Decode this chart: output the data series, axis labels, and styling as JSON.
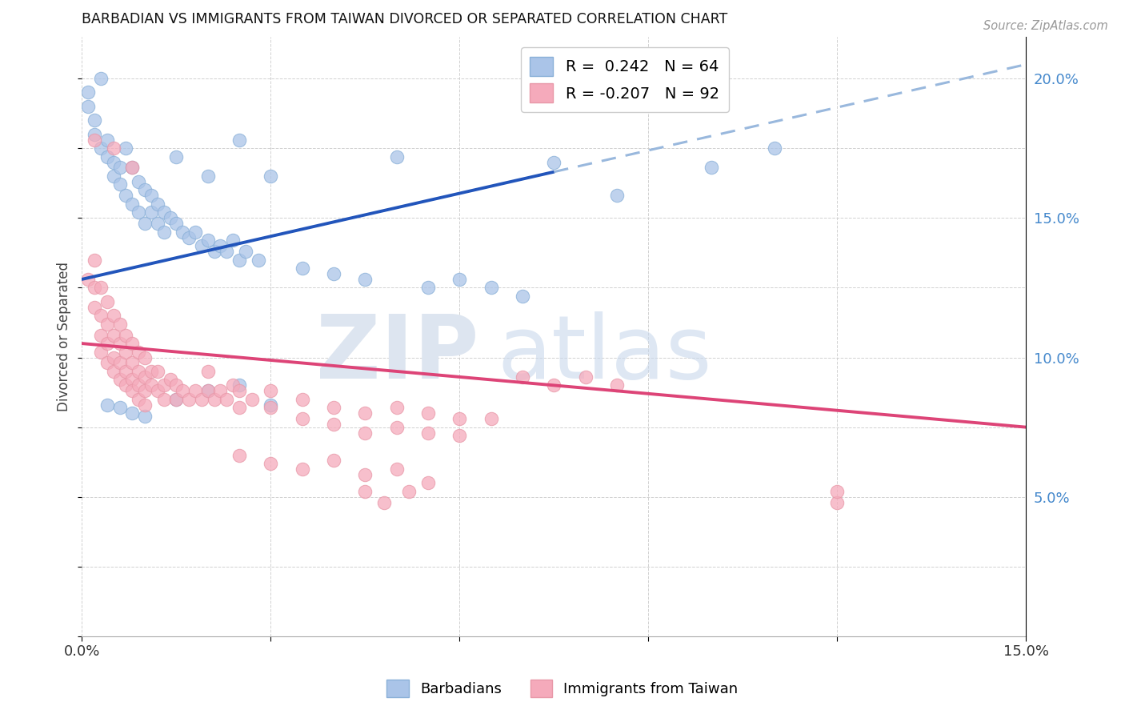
{
  "title": "BARBADIAN VS IMMIGRANTS FROM TAIWAN DIVORCED OR SEPARATED CORRELATION CHART",
  "source": "Source: ZipAtlas.com",
  "ylabel": "Divorced or Separated",
  "xlim": [
    0.0,
    0.15
  ],
  "ylim": [
    0.0,
    0.215
  ],
  "xtick_positions": [
    0.0,
    0.03,
    0.06,
    0.09,
    0.12,
    0.15
  ],
  "xtick_labels": [
    "0.0%",
    "",
    "",
    "",
    "",
    "15.0%"
  ],
  "ytick_positions": [
    0.0,
    0.05,
    0.1,
    0.15,
    0.2
  ],
  "ytick_labels": [
    "",
    "5.0%",
    "10.0%",
    "15.0%",
    "20.0%"
  ],
  "barbadian_color": "#aac4e8",
  "taiwan_color": "#f5aabb",
  "barbadian_line_color": "#2255bb",
  "taiwan_line_color": "#dd4477",
  "barbadian_line_dash_color": "#99b8dd",
  "barbadian_line_solid_end": 0.075,
  "barbadian_line_x0": 0.0,
  "barbadian_line_y0": 0.128,
  "barbadian_line_x1": 0.15,
  "barbadian_line_y1": 0.205,
  "taiwan_line_x0": 0.0,
  "taiwan_line_y0": 0.105,
  "taiwan_line_x1": 0.15,
  "taiwan_line_y1": 0.075,
  "barbadian_scatter": [
    [
      0.001,
      0.195
    ],
    [
      0.001,
      0.19
    ],
    [
      0.002,
      0.185
    ],
    [
      0.002,
      0.18
    ],
    [
      0.003,
      0.175
    ],
    [
      0.003,
      0.2
    ],
    [
      0.004,
      0.178
    ],
    [
      0.004,
      0.172
    ],
    [
      0.005,
      0.17
    ],
    [
      0.005,
      0.165
    ],
    [
      0.006,
      0.168
    ],
    [
      0.006,
      0.162
    ],
    [
      0.007,
      0.175
    ],
    [
      0.007,
      0.158
    ],
    [
      0.008,
      0.168
    ],
    [
      0.008,
      0.155
    ],
    [
      0.009,
      0.163
    ],
    [
      0.009,
      0.152
    ],
    [
      0.01,
      0.16
    ],
    [
      0.01,
      0.148
    ],
    [
      0.011,
      0.158
    ],
    [
      0.011,
      0.152
    ],
    [
      0.012,
      0.155
    ],
    [
      0.012,
      0.148
    ],
    [
      0.013,
      0.152
    ],
    [
      0.013,
      0.145
    ],
    [
      0.014,
      0.15
    ],
    [
      0.015,
      0.148
    ],
    [
      0.015,
      0.172
    ],
    [
      0.016,
      0.145
    ],
    [
      0.017,
      0.143
    ],
    [
      0.018,
      0.145
    ],
    [
      0.019,
      0.14
    ],
    [
      0.02,
      0.142
    ],
    [
      0.02,
      0.165
    ],
    [
      0.021,
      0.138
    ],
    [
      0.022,
      0.14
    ],
    [
      0.023,
      0.138
    ],
    [
      0.024,
      0.142
    ],
    [
      0.025,
      0.135
    ],
    [
      0.025,
      0.178
    ],
    [
      0.026,
      0.138
    ],
    [
      0.028,
      0.135
    ],
    [
      0.03,
      0.165
    ],
    [
      0.035,
      0.132
    ],
    [
      0.04,
      0.13
    ],
    [
      0.045,
      0.128
    ],
    [
      0.05,
      0.172
    ],
    [
      0.055,
      0.125
    ],
    [
      0.06,
      0.128
    ],
    [
      0.065,
      0.125
    ],
    [
      0.07,
      0.122
    ],
    [
      0.015,
      0.085
    ],
    [
      0.02,
      0.088
    ],
    [
      0.025,
      0.09
    ],
    [
      0.03,
      0.083
    ],
    [
      0.004,
      0.083
    ],
    [
      0.006,
      0.082
    ],
    [
      0.008,
      0.08
    ],
    [
      0.01,
      0.079
    ],
    [
      0.075,
      0.17
    ],
    [
      0.085,
      0.158
    ],
    [
      0.1,
      0.168
    ],
    [
      0.11,
      0.175
    ]
  ],
  "taiwan_scatter": [
    [
      0.001,
      0.128
    ],
    [
      0.002,
      0.135
    ],
    [
      0.002,
      0.125
    ],
    [
      0.002,
      0.118
    ],
    [
      0.003,
      0.125
    ],
    [
      0.003,
      0.115
    ],
    [
      0.003,
      0.108
    ],
    [
      0.003,
      0.102
    ],
    [
      0.004,
      0.12
    ],
    [
      0.004,
      0.112
    ],
    [
      0.004,
      0.105
    ],
    [
      0.004,
      0.098
    ],
    [
      0.005,
      0.115
    ],
    [
      0.005,
      0.108
    ],
    [
      0.005,
      0.1
    ],
    [
      0.005,
      0.095
    ],
    [
      0.006,
      0.112
    ],
    [
      0.006,
      0.105
    ],
    [
      0.006,
      0.098
    ],
    [
      0.006,
      0.092
    ],
    [
      0.007,
      0.108
    ],
    [
      0.007,
      0.102
    ],
    [
      0.007,
      0.095
    ],
    [
      0.007,
      0.09
    ],
    [
      0.008,
      0.105
    ],
    [
      0.008,
      0.098
    ],
    [
      0.008,
      0.092
    ],
    [
      0.008,
      0.088
    ],
    [
      0.009,
      0.102
    ],
    [
      0.009,
      0.095
    ],
    [
      0.009,
      0.09
    ],
    [
      0.009,
      0.085
    ],
    [
      0.01,
      0.1
    ],
    [
      0.01,
      0.093
    ],
    [
      0.01,
      0.088
    ],
    [
      0.01,
      0.083
    ],
    [
      0.011,
      0.095
    ],
    [
      0.011,
      0.09
    ],
    [
      0.012,
      0.095
    ],
    [
      0.012,
      0.088
    ],
    [
      0.013,
      0.09
    ],
    [
      0.013,
      0.085
    ],
    [
      0.014,
      0.092
    ],
    [
      0.015,
      0.09
    ],
    [
      0.015,
      0.085
    ],
    [
      0.016,
      0.088
    ],
    [
      0.017,
      0.085
    ],
    [
      0.018,
      0.088
    ],
    [
      0.019,
      0.085
    ],
    [
      0.02,
      0.095
    ],
    [
      0.02,
      0.088
    ],
    [
      0.021,
      0.085
    ],
    [
      0.022,
      0.088
    ],
    [
      0.023,
      0.085
    ],
    [
      0.024,
      0.09
    ],
    [
      0.025,
      0.088
    ],
    [
      0.025,
      0.082
    ],
    [
      0.027,
      0.085
    ],
    [
      0.03,
      0.088
    ],
    [
      0.03,
      0.082
    ],
    [
      0.035,
      0.085
    ],
    [
      0.035,
      0.078
    ],
    [
      0.04,
      0.082
    ],
    [
      0.04,
      0.076
    ],
    [
      0.045,
      0.08
    ],
    [
      0.045,
      0.073
    ],
    [
      0.05,
      0.082
    ],
    [
      0.05,
      0.075
    ],
    [
      0.055,
      0.08
    ],
    [
      0.055,
      0.073
    ],
    [
      0.06,
      0.078
    ],
    [
      0.06,
      0.072
    ],
    [
      0.065,
      0.078
    ],
    [
      0.07,
      0.093
    ],
    [
      0.075,
      0.09
    ],
    [
      0.08,
      0.093
    ],
    [
      0.085,
      0.09
    ],
    [
      0.025,
      0.065
    ],
    [
      0.03,
      0.062
    ],
    [
      0.035,
      0.06
    ],
    [
      0.04,
      0.063
    ],
    [
      0.045,
      0.058
    ],
    [
      0.05,
      0.06
    ],
    [
      0.055,
      0.055
    ],
    [
      0.045,
      0.052
    ],
    [
      0.048,
      0.048
    ],
    [
      0.052,
      0.052
    ],
    [
      0.12,
      0.048
    ],
    [
      0.002,
      0.178
    ],
    [
      0.12,
      0.052
    ],
    [
      0.005,
      0.175
    ],
    [
      0.008,
      0.168
    ]
  ]
}
